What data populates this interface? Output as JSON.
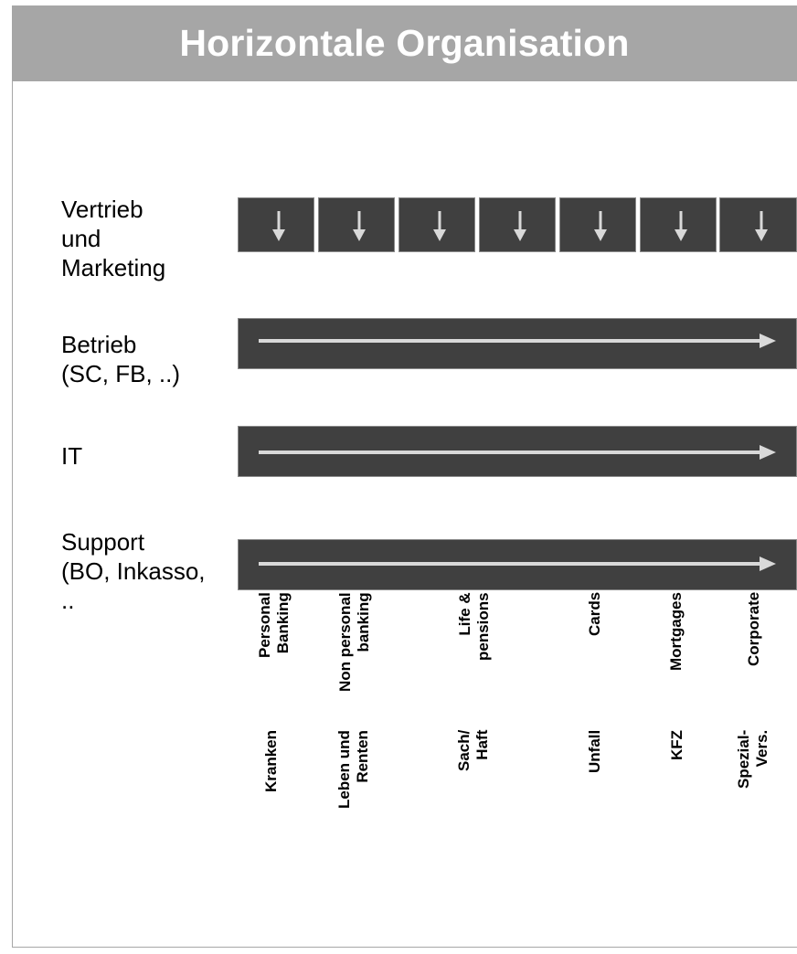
{
  "title": "Horizontale Organisation",
  "rows": [
    {
      "label": "Vertrieb\nund\nMarketing",
      "kind": "arrows-down"
    },
    {
      "label": "Betrieb\n(SC, FB, ..)",
      "kind": "arrow-right"
    },
    {
      "label": "IT",
      "kind": "arrow-right"
    },
    {
      "label": "Support\n(BO, Inkasso,\n..",
      "kind": "arrow-right"
    }
  ],
  "columns_banking": [
    "Personal\nBanking",
    "Non personal\nbanking",
    "Life &\npensions",
    "Cards",
    "Mortgages",
    "Corporate"
  ],
  "columns_insurance": [
    "Kranken",
    "Leben und\nRenten",
    "Sach/\nHaft",
    "Unfall",
    "KFZ",
    "Spezial-\nVers."
  ],
  "colors": {
    "title_bar": "#a6a6a6",
    "box": "#404040",
    "arrow": "#d9d9d9"
  },
  "icons": {
    "down": "arrow-down-icon",
    "right": "arrow-right-icon"
  }
}
